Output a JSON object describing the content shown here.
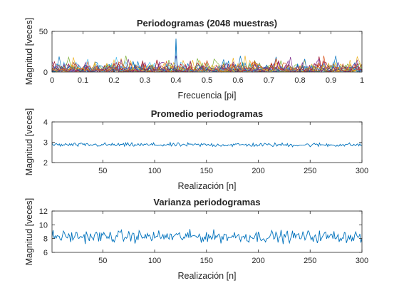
{
  "chart_data": [
    {
      "type": "line",
      "title": "Periodogramas (2048 muestras)",
      "xlabel": "Frecuencia [pi]",
      "ylabel": "Magnitud [veces]",
      "xlim": [
        0,
        1
      ],
      "ylim": [
        0,
        50
      ],
      "xticks": [
        0,
        0.1,
        0.2,
        0.3,
        0.4,
        0.5,
        0.6,
        0.7,
        0.8,
        0.9,
        1
      ],
      "xtick_labels": [
        "0",
        "0.1",
        "0.2",
        "0.3",
        "0.4",
        "0.5",
        "0.6",
        "0.7",
        "0.8",
        "0.9",
        "1"
      ],
      "yticks": [
        0,
        50
      ],
      "ytick_labels": [
        "0",
        "50"
      ],
      "grid": false,
      "series_count": 300,
      "typical_magnitude": 3,
      "band_upper": 20,
      "max_peak": {
        "x": 0.4,
        "y": 41
      },
      "colors": [
        "#0072BD",
        "#D95319",
        "#EDB120",
        "#7E2F8E",
        "#77AC30",
        "#4DBEEE",
        "#A2142F"
      ]
    },
    {
      "type": "line",
      "title": "Promedio periodogramas",
      "xlabel": "Realización [n]",
      "ylabel": "Magnitud [veces]",
      "xlim": [
        1,
        300
      ],
      "ylim": [
        2,
        4
      ],
      "xticks": [
        50,
        100,
        150,
        200,
        250,
        300
      ],
      "xtick_labels": [
        "50",
        "100",
        "150",
        "200",
        "250",
        "300"
      ],
      "yticks": [
        2,
        3,
        4
      ],
      "ytick_labels": [
        "2",
        "3",
        "4"
      ],
      "grid": false,
      "mean": 2.87,
      "noise_amplitude": 0.09,
      "n_points": 300,
      "color": "#0072BD"
    },
    {
      "type": "line",
      "title": "Varianza periodogramas",
      "xlabel": "Realización [n]",
      "ylabel": "Magnitud [veces]",
      "xlim": [
        1,
        300
      ],
      "ylim": [
        6,
        12
      ],
      "xticks": [
        50,
        100,
        150,
        200,
        250,
        300
      ],
      "xtick_labels": [
        "50",
        "100",
        "150",
        "200",
        "250",
        "300"
      ],
      "yticks": [
        6,
        8,
        10,
        12
      ],
      "ytick_labels": [
        "6",
        "8",
        "10",
        "12"
      ],
      "grid": false,
      "mean": 8.3,
      "noise_amplitude": 0.8,
      "n_points": 300,
      "color": "#0072BD"
    }
  ]
}
